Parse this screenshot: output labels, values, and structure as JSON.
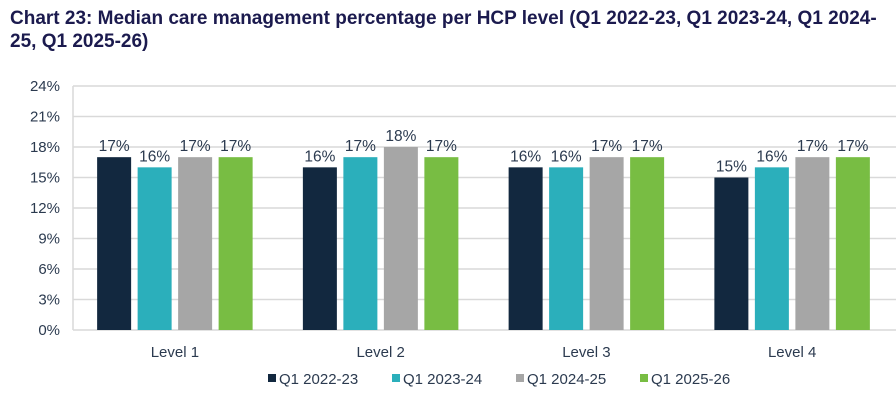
{
  "chart_data": {
    "type": "bar",
    "title": "Chart 23: Median care management percentage per HCP level (Q1 2022-23, Q1 2023-24, Q1 2024-25, Q1 2025-26)",
    "xlabel": "",
    "ylabel": "",
    "categories": [
      "Level 1",
      "Level 2",
      "Level 3",
      "Level 4"
    ],
    "series": [
      {
        "name": "Q1 2022-23",
        "color": "#12283f",
        "values": [
          17,
          16,
          16,
          15
        ]
      },
      {
        "name": "Q1 2023-24",
        "color": "#2bafbb",
        "values": [
          16,
          17,
          16,
          16
        ]
      },
      {
        "name": "Q1 2024-25",
        "color": "#a6a6a6",
        "values": [
          17,
          18,
          17,
          17
        ]
      },
      {
        "name": "Q1 2025-26",
        "color": "#78bd43",
        "values": [
          17,
          17,
          17,
          17
        ]
      }
    ],
    "ylim": [
      0,
      24
    ],
    "yticks": [
      0,
      3,
      6,
      9,
      12,
      15,
      18,
      21,
      24
    ],
    "ytick_labels": [
      "0%",
      "3%",
      "6%",
      "9%",
      "12%",
      "15%",
      "18%",
      "21%",
      "24%"
    ],
    "value_suffix": "%",
    "grid": true,
    "legend_position": "bottom"
  }
}
